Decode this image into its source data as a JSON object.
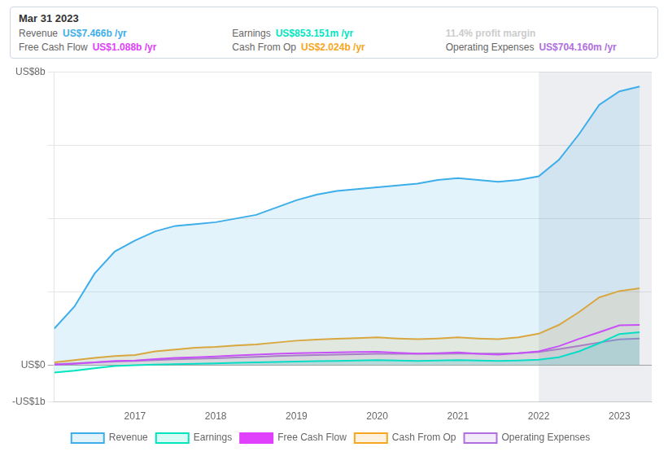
{
  "chart_data": {
    "type": "line",
    "x": [
      2016.0,
      2016.25,
      2016.5,
      2016.75,
      2017.0,
      2017.25,
      2017.5,
      2017.75,
      2018.0,
      2018.25,
      2018.5,
      2018.75,
      2019.0,
      2019.25,
      2019.5,
      2019.75,
      2020.0,
      2020.25,
      2020.5,
      2020.75,
      2021.0,
      2021.25,
      2021.5,
      2021.75,
      2022.0,
      2022.25,
      2022.5,
      2022.75,
      2023.0,
      2023.25
    ],
    "series": [
      {
        "name": "Revenue",
        "type": "area",
        "color": "#3daee9",
        "values": [
          1.0,
          1.6,
          2.5,
          3.1,
          3.4,
          3.65,
          3.8,
          3.85,
          3.9,
          4.0,
          4.1,
          4.3,
          4.5,
          4.65,
          4.75,
          4.8,
          4.85,
          4.9,
          4.95,
          5.05,
          5.1,
          5.05,
          5.0,
          5.05,
          5.15,
          5.6,
          6.3,
          7.1,
          7.466,
          7.6
        ]
      },
      {
        "name": "Earnings",
        "type": "area",
        "color": "#00e5c0",
        "values": [
          -0.2,
          -0.15,
          -0.08,
          -0.02,
          0.0,
          0.02,
          0.03,
          0.04,
          0.05,
          0.07,
          0.08,
          0.09,
          0.1,
          0.11,
          0.12,
          0.13,
          0.14,
          0.13,
          0.12,
          0.13,
          0.14,
          0.13,
          0.12,
          0.13,
          0.15,
          0.22,
          0.38,
          0.6,
          0.853,
          0.9
        ]
      },
      {
        "name": "Free Cash Flow",
        "type": "line",
        "color": "#e040fb",
        "values": [
          0.01,
          0.04,
          0.08,
          0.12,
          0.13,
          0.17,
          0.2,
          0.22,
          0.24,
          0.27,
          0.29,
          0.31,
          0.33,
          0.34,
          0.35,
          0.36,
          0.37,
          0.34,
          0.32,
          0.33,
          0.35,
          0.31,
          0.29,
          0.33,
          0.38,
          0.52,
          0.72,
          0.9,
          1.088,
          1.1
        ]
      },
      {
        "name": "Cash From Op",
        "type": "area",
        "color": "#f5a623",
        "values": [
          0.08,
          0.14,
          0.2,
          0.25,
          0.28,
          0.38,
          0.43,
          0.48,
          0.5,
          0.54,
          0.57,
          0.62,
          0.67,
          0.7,
          0.72,
          0.74,
          0.76,
          0.73,
          0.71,
          0.73,
          0.76,
          0.73,
          0.71,
          0.76,
          0.86,
          1.1,
          1.45,
          1.85,
          2.024,
          2.1
        ]
      },
      {
        "name": "Operating Expenses",
        "type": "area",
        "color": "#b06fdd",
        "values": [
          0.03,
          0.05,
          0.08,
          0.1,
          0.12,
          0.14,
          0.16,
          0.18,
          0.19,
          0.21,
          0.23,
          0.25,
          0.27,
          0.28,
          0.29,
          0.3,
          0.31,
          0.31,
          0.31,
          0.31,
          0.32,
          0.32,
          0.32,
          0.33,
          0.36,
          0.44,
          0.53,
          0.62,
          0.704,
          0.73
        ]
      }
    ],
    "xlim": [
      2016.0,
      2023.4
    ],
    "xticks": [
      2017,
      2018,
      2019,
      2020,
      2021,
      2022,
      2023
    ],
    "ylim": [
      -1.0,
      8.0
    ],
    "yticks": [
      {
        "value": -1,
        "label": "-US$1b"
      },
      {
        "value": 0,
        "label": "US$0"
      },
      {
        "value": 2,
        "label": null
      },
      {
        "value": 4,
        "label": null
      },
      {
        "value": 6,
        "label": null
      },
      {
        "value": 8,
        "label": "US$8b"
      }
    ],
    "grid": "y",
    "legend": "bottom",
    "highlight": [
      2022.0,
      2023.4
    ],
    "annotation": {
      "title": "Mar 31 2023",
      "rows": [
        {
          "label": "Revenue",
          "value": "US$7.466b /yr",
          "color": "#3daee9"
        },
        {
          "label": "Earnings",
          "value": "US$853.151m /yr",
          "color": "#00e5c0"
        },
        {
          "value": "11.4% profit margin",
          "color": "#cccccc"
        },
        {
          "label": "Free Cash Flow",
          "value": "US$1.088b /yr",
          "color": "#e040fb"
        },
        {
          "label": "Cash From Op",
          "value": "US$2.024b /yr",
          "color": "#f5a623"
        },
        {
          "label": "Operating Expenses",
          "value": "US$704.160m /yr",
          "color": "#b06fdd"
        }
      ]
    }
  }
}
